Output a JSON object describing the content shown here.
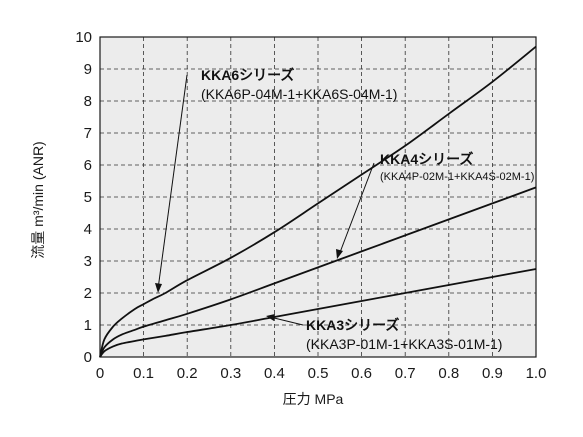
{
  "chart_data": {
    "type": "line",
    "title": "",
    "xlabel": "圧力 MPa",
    "ylabel": "流量 m³/min (ANR)",
    "xlim": [
      0,
      1.0
    ],
    "ylim": [
      0,
      10
    ],
    "x_ticks": [
      "0",
      "0.1",
      "0.2",
      "0.3",
      "0.4",
      "0.5",
      "0.6",
      "0.7",
      "0.8",
      "0.9",
      "1.0"
    ],
    "y_ticks": [
      "0",
      "1",
      "2",
      "3",
      "4",
      "5",
      "6",
      "7",
      "8",
      "9",
      "10"
    ],
    "grid": "dashed",
    "plot_background": "#ececec",
    "series": [
      {
        "name": "KKA6シリーズ",
        "model": "(KKA6P-04M-1+KKA6S-04M-1)",
        "x": [
          0,
          0.01,
          0.03,
          0.05,
          0.08,
          0.1,
          0.12,
          0.15,
          0.2,
          0.3,
          0.4,
          0.5,
          0.6,
          0.7,
          0.8,
          0.9,
          1.0
        ],
        "y": [
          0,
          0.55,
          0.95,
          1.2,
          1.5,
          1.65,
          1.8,
          2.0,
          2.4,
          3.1,
          3.9,
          4.8,
          5.7,
          6.6,
          7.6,
          8.6,
          9.7
        ]
      },
      {
        "name": "KKA4シリーズ",
        "model": "(KKA4P-02M-1+KKA4S-02M-1)",
        "x": [
          0,
          0.01,
          0.03,
          0.05,
          0.08,
          0.1,
          0.15,
          0.2,
          0.3,
          0.4,
          0.5,
          0.6,
          0.7,
          0.8,
          0.9,
          1.0
        ],
        "y": [
          0,
          0.3,
          0.55,
          0.7,
          0.85,
          0.95,
          1.15,
          1.35,
          1.8,
          2.3,
          2.8,
          3.3,
          3.8,
          4.3,
          4.8,
          5.3
        ]
      },
      {
        "name": "KKA3シリーズ",
        "model": "(KKA3P-01M-1+KKA3S-01M-1)",
        "x": [
          0,
          0.01,
          0.03,
          0.05,
          0.08,
          0.1,
          0.15,
          0.2,
          0.3,
          0.4,
          0.5,
          0.6,
          0.7,
          0.8,
          0.9,
          1.0
        ],
        "y": [
          0,
          0.18,
          0.33,
          0.42,
          0.5,
          0.55,
          0.66,
          0.78,
          1.0,
          1.25,
          1.5,
          1.75,
          2.0,
          2.25,
          2.5,
          2.75
        ]
      }
    ]
  }
}
